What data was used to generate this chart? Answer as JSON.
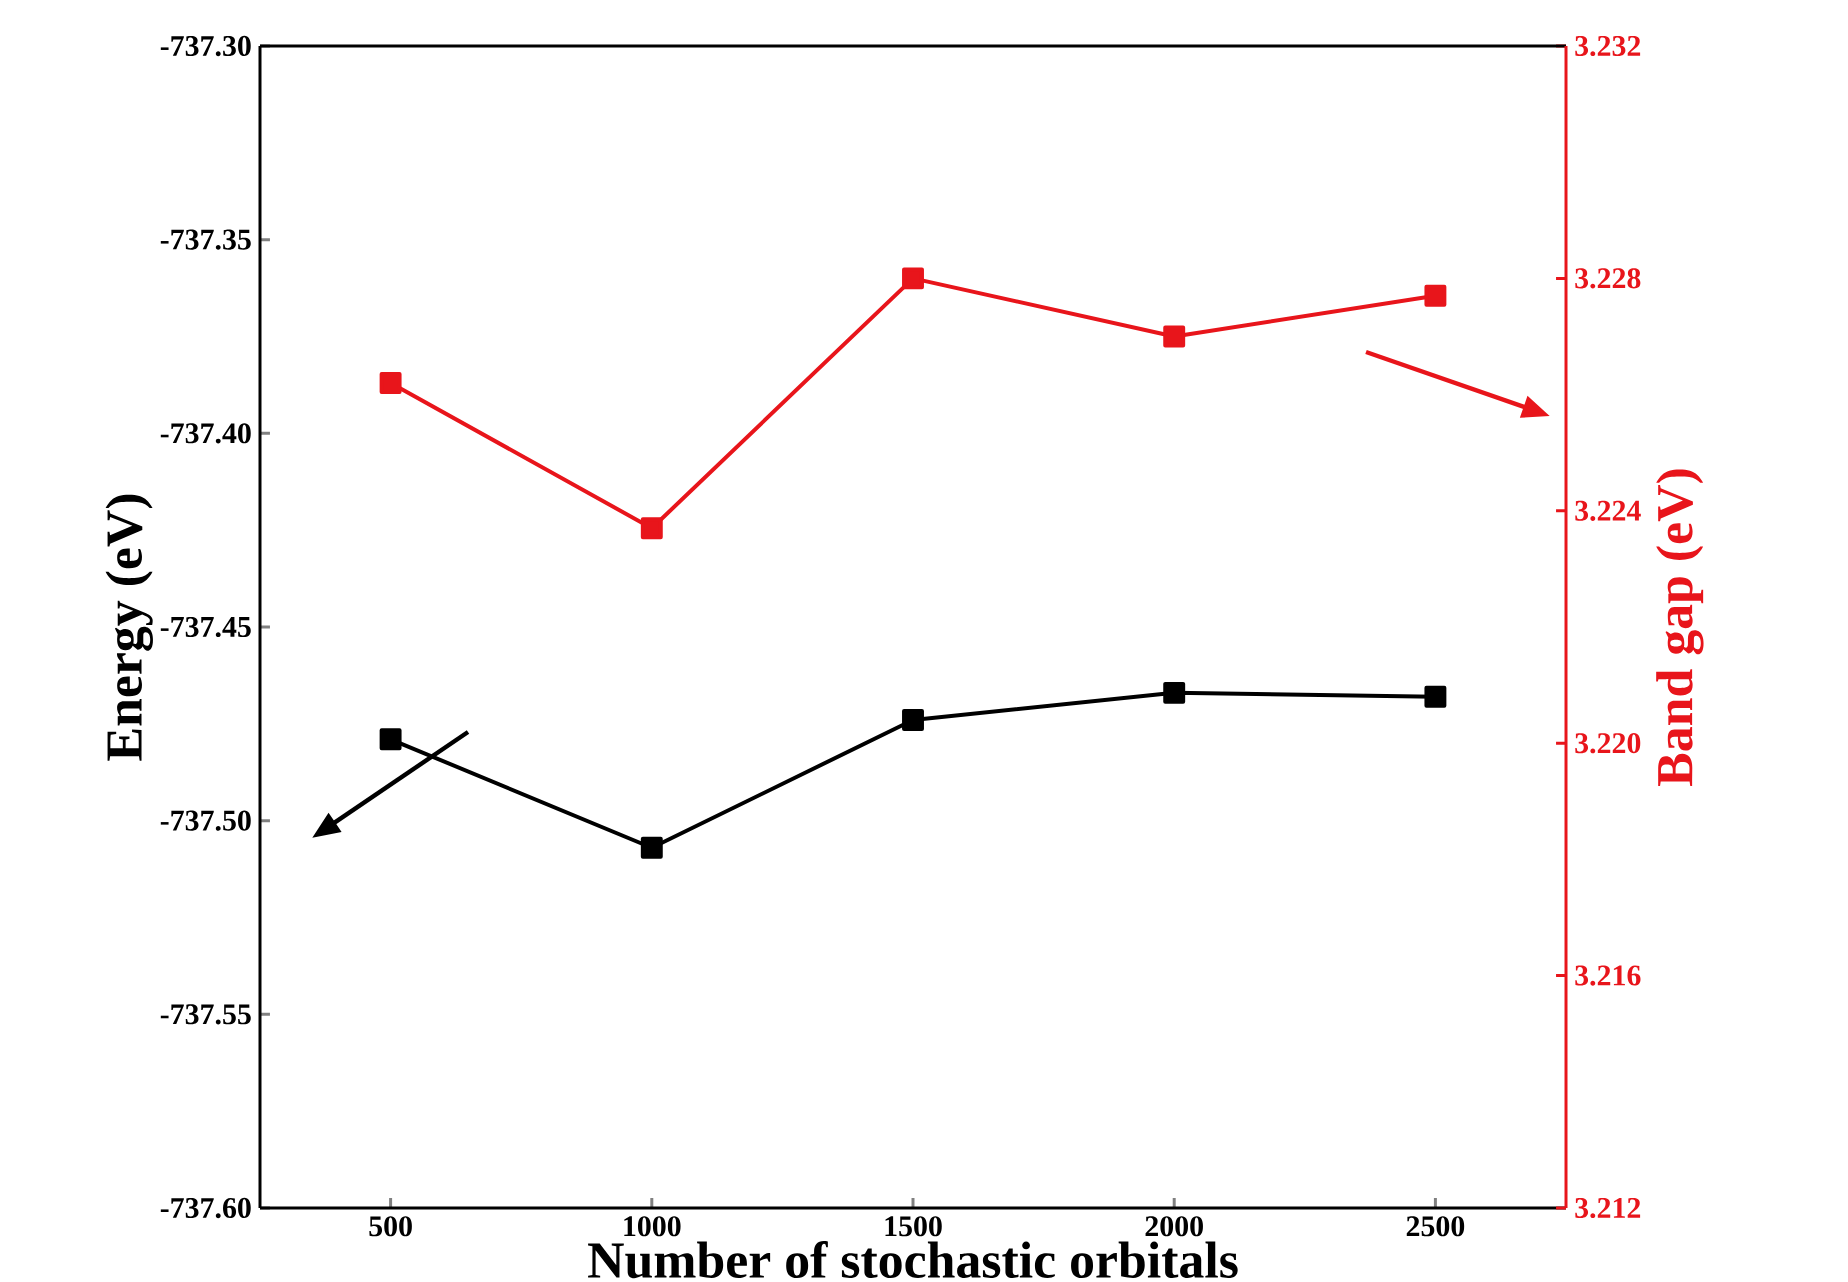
{
  "chart_data": {
    "type": "line",
    "xlabel": "Number of stochastic orbitals",
    "ylabel": "Energy (eV)",
    "y2label": "Band gap (eV)",
    "x": [
      500,
      1000,
      1500,
      2000,
      2500
    ],
    "xlim": [
      250,
      2750
    ],
    "xticks": [
      500,
      1000,
      1500,
      2000,
      2500
    ],
    "ylim": [
      -737.6,
      -737.3
    ],
    "yticks": [
      {
        "value": -737.6,
        "label": "-737.60"
      },
      {
        "value": -737.55,
        "label": "-737.55"
      },
      {
        "value": -737.5,
        "label": "-737.50"
      },
      {
        "value": -737.45,
        "label": "-737.45"
      },
      {
        "value": -737.4,
        "label": "-737.40"
      },
      {
        "value": -737.35,
        "label": "-737.35"
      },
      {
        "value": -737.3,
        "label": "-737.30"
      }
    ],
    "y2lim": [
      3.212,
      3.232
    ],
    "y2ticks": [
      3.212,
      3.216,
      {
        "value": 3.22,
        "label": "3.220"
      },
      3.224,
      3.228,
      3.232
    ],
    "marker": "square",
    "line_style": "solid",
    "grid": false,
    "series": [
      {
        "color": "#000000",
        "values": [
          -737.479,
          -737.507,
          -737.474,
          -737.467,
          -737.468
        ]
      },
      {
        "color": "#e8151b",
        "axis": "y2",
        "values": [
          3.2262,
          3.2237,
          3.228,
          3.227,
          3.2277
        ]
      }
    ]
  }
}
